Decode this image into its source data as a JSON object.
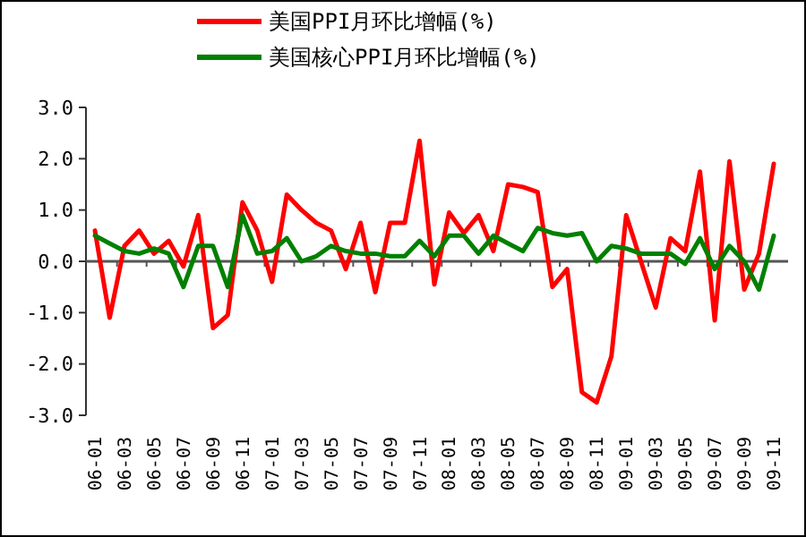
{
  "chart_data": {
    "type": "line",
    "categories": [
      "06-01",
      null,
      "06-03",
      null,
      "06-05",
      null,
      "06-07",
      null,
      "06-09",
      null,
      "06-11",
      null,
      "07-01",
      null,
      "07-03",
      null,
      "07-05",
      null,
      "07-07",
      null,
      "07-09",
      null,
      "07-11",
      null,
      "08-01",
      null,
      "08-03",
      null,
      "08-05",
      null,
      "08-07",
      null,
      "08-09",
      null,
      "08-11",
      null,
      "09-01",
      null,
      "09-03",
      null,
      "09-05",
      null,
      "09-07",
      null,
      "09-09",
      null,
      "09-11"
    ],
    "series": [
      {
        "name": "美国PPI月环比增幅(%)",
        "color": "#ff0000",
        "values": [
          0.6,
          -1.1,
          0.3,
          0.6,
          0.15,
          0.4,
          -0.1,
          0.9,
          -1.3,
          -1.05,
          1.15,
          0.6,
          -0.4,
          1.3,
          1.0,
          0.75,
          0.6,
          -0.15,
          0.75,
          -0.6,
          0.75,
          0.75,
          2.35,
          -0.45,
          0.95,
          0.55,
          0.9,
          0.2,
          1.5,
          1.45,
          1.35,
          -0.5,
          -0.15,
          -2.55,
          -2.75,
          -1.85,
          0.9,
          0.0,
          -0.9,
          0.45,
          0.2,
          1.75,
          -1.15,
          1.95,
          -0.55,
          0.15,
          1.9
        ]
      },
      {
        "name": "美国核心PPI月环比增幅(%)",
        "color": "#008000",
        "values": [
          0.5,
          0.35,
          0.2,
          0.15,
          0.25,
          0.15,
          -0.5,
          0.3,
          0.3,
          -0.5,
          0.9,
          0.15,
          0.2,
          0.45,
          0.0,
          0.1,
          0.3,
          0.2,
          0.15,
          0.15,
          0.1,
          0.1,
          0.4,
          0.1,
          0.5,
          0.5,
          0.15,
          0.5,
          0.35,
          0.2,
          0.65,
          0.55,
          0.5,
          0.55,
          0.0,
          0.3,
          0.25,
          0.15,
          0.15,
          0.15,
          -0.05,
          0.45,
          -0.15,
          0.3,
          0.0,
          -0.55,
          0.5
        ]
      }
    ],
    "ylim": [
      -3,
      3
    ],
    "yticks": [
      {
        "value": -3,
        "label": "-3.0"
      },
      {
        "value": -2,
        "label": "-2.0"
      },
      {
        "value": -1,
        "label": "-1.0"
      },
      {
        "value": 0,
        "label": "0.0"
      },
      {
        "value": 1,
        "label": "1.0"
      },
      {
        "value": 2,
        "label": "2.0"
      },
      {
        "value": 3,
        "label": "3.0"
      }
    ],
    "legend": "top",
    "marker": "none",
    "line_style": "solid"
  }
}
